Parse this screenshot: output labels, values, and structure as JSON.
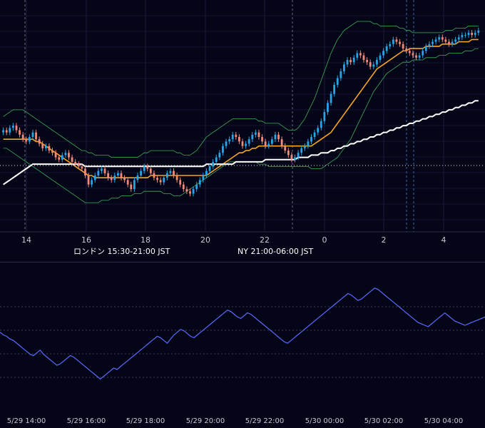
{
  "chart_data": [
    {
      "type": "candlestick",
      "colors": {
        "up": "#26a6e8",
        "down": "#f28a78",
        "ma_fast": "#f5a623",
        "ma_slow": "#ffffff",
        "bollinger": "#3fae5a",
        "background": "#050518",
        "grid": "#1a1a38"
      },
      "x_tick_labels": [
        "14",
        "16",
        "18",
        "20",
        "22",
        "0",
        "2",
        "4"
      ],
      "close": [
        62,
        61,
        63,
        64,
        62,
        60,
        58,
        57,
        59,
        61,
        58,
        56,
        54,
        55,
        53,
        52,
        50,
        49,
        51,
        52,
        50,
        48,
        47,
        46,
        45,
        42,
        38,
        40,
        42,
        44,
        45,
        43,
        41,
        40,
        42,
        43,
        41,
        40,
        38,
        36,
        40,
        42,
        44,
        46,
        45,
        43,
        41,
        40,
        39,
        41,
        43,
        44,
        42,
        40,
        38,
        36,
        35,
        34,
        36,
        38,
        40,
        42,
        44,
        46,
        48,
        50,
        52,
        55,
        57,
        58,
        60,
        59,
        57,
        55,
        56,
        58,
        60,
        61,
        59,
        57,
        55,
        56,
        58,
        60,
        58,
        55,
        53,
        51,
        49,
        50,
        52,
        54,
        55,
        57,
        59,
        61,
        63,
        66,
        70,
        74,
        78,
        82,
        85,
        88,
        91,
        93,
        92,
        94,
        96,
        95,
        93,
        92,
        90,
        91,
        93,
        95,
        97,
        99,
        100,
        102,
        101,
        100,
        98,
        97,
        96,
        95,
        94,
        95,
        97,
        99,
        100,
        101,
        102,
        103,
        102,
        101,
        100,
        101,
        102,
        103,
        104,
        104,
        105,
        104,
        105,
        106
      ],
      "moving_averages": [
        {
          "id": "fast",
          "color": "#f5a623",
          "values": [
            58,
            58,
            58,
            58,
            58,
            58,
            58,
            58,
            58,
            58,
            57,
            57,
            56,
            55,
            54,
            53,
            52,
            51,
            50,
            49,
            48,
            47,
            46,
            45,
            44,
            43,
            42,
            42,
            41,
            41,
            41,
            41,
            41,
            41,
            41,
            41,
            41,
            41,
            41,
            41,
            41,
            41,
            41,
            41,
            41,
            42,
            42,
            42,
            42,
            42,
            42,
            42,
            42,
            42,
            42,
            42,
            42,
            42,
            42,
            42,
            42,
            42,
            42,
            43,
            44,
            45,
            46,
            47,
            48,
            49,
            50,
            51,
            52,
            52,
            53,
            53,
            54,
            54,
            55,
            55,
            55,
            55,
            55,
            55,
            55,
            55,
            55,
            55,
            55,
            55,
            55,
            55,
            55,
            55,
            55,
            56,
            57,
            58,
            59,
            60,
            61,
            63,
            65,
            67,
            69,
            71,
            73,
            75,
            77,
            79,
            81,
            83,
            85,
            87,
            89,
            90,
            91,
            92,
            93,
            94,
            95,
            96,
            97,
            97,
            98,
            98,
            98,
            98,
            98,
            99,
            99,
            99,
            99,
            99,
            100,
            100,
            100,
            100,
            100,
            101,
            101,
            101,
            101,
            102,
            102,
            102
          ]
        },
        {
          "id": "slow",
          "color": "#ffffff",
          "values": [
            38,
            39,
            40,
            41,
            42,
            43,
            44,
            45,
            46,
            47,
            47,
            47,
            47,
            47,
            47,
            47,
            47,
            47,
            47,
            47,
            47,
            47,
            47,
            47,
            47,
            46,
            46,
            46,
            46,
            46,
            46,
            46,
            46,
            46,
            46,
            46,
            46,
            46,
            46,
            46,
            46,
            46,
            46,
            46,
            46,
            46,
            46,
            46,
            46,
            46,
            46,
            46,
            46,
            46,
            46,
            46,
            46,
            46,
            46,
            46,
            46,
            46,
            47,
            47,
            47,
            47,
            47,
            47,
            47,
            47,
            47,
            48,
            48,
            48,
            48,
            48,
            48,
            48,
            48,
            48,
            49,
            49,
            49,
            49,
            49,
            49,
            49,
            49,
            49,
            49,
            50,
            50,
            50,
            50,
            51,
            51,
            51,
            52,
            52,
            52,
            53,
            53,
            54,
            54,
            55,
            55,
            56,
            56,
            57,
            57,
            58,
            58,
            59,
            59,
            60,
            60,
            61,
            61,
            62,
            62,
            63,
            63,
            64,
            64,
            65,
            65,
            66,
            66,
            67,
            67,
            68,
            68,
            69,
            69,
            70,
            70,
            71,
            71,
            72,
            72,
            73,
            73,
            74,
            74,
            75,
            75
          ]
        }
      ],
      "bollinger_upper": [
        68,
        69,
        70,
        71,
        71,
        71,
        71,
        70,
        69,
        68,
        67,
        66,
        65,
        64,
        63,
        62,
        61,
        60,
        59,
        58,
        57,
        56,
        55,
        54,
        53,
        53,
        52,
        52,
        51,
        51,
        51,
        51,
        51,
        50,
        50,
        50,
        50,
        50,
        50,
        50,
        50,
        50,
        51,
        52,
        52,
        53,
        53,
        53,
        53,
        53,
        53,
        53,
        53,
        52,
        52,
        51,
        51,
        51,
        52,
        53,
        55,
        57,
        59,
        60,
        61,
        62,
        63,
        64,
        65,
        66,
        67,
        67,
        67,
        67,
        67,
        67,
        67,
        67,
        66,
        66,
        65,
        65,
        65,
        65,
        65,
        64,
        63,
        62,
        62,
        62,
        63,
        65,
        67,
        70,
        73,
        76,
        80,
        84,
        88,
        92,
        96,
        99,
        102,
        104,
        106,
        107,
        108,
        109,
        110,
        110,
        110,
        110,
        110,
        109,
        109,
        108,
        108,
        108,
        108,
        108,
        108,
        107,
        107,
        106,
        106,
        105,
        105,
        105,
        105,
        105,
        105,
        105,
        105,
        105,
        105,
        106,
        106,
        106,
        107,
        107,
        107,
        107,
        108,
        108,
        108,
        108
      ],
      "bollinger_lower": [
        54,
        54,
        53,
        52,
        51,
        50,
        49,
        48,
        47,
        46,
        45,
        44,
        43,
        42,
        41,
        40,
        39,
        38,
        37,
        36,
        35,
        34,
        33,
        32,
        31,
        30,
        30,
        30,
        30,
        30,
        31,
        31,
        31,
        32,
        32,
        32,
        33,
        33,
        33,
        33,
        34,
        34,
        34,
        35,
        35,
        35,
        35,
        35,
        35,
        34,
        34,
        34,
        33,
        33,
        33,
        34,
        35,
        36,
        37,
        38,
        39,
        40,
        41,
        42,
        43,
        44,
        45,
        46,
        47,
        48,
        48,
        48,
        48,
        48,
        48,
        48,
        48,
        48,
        47,
        47,
        47,
        46,
        46,
        46,
        46,
        46,
        46,
        46,
        46,
        46,
        46,
        46,
        46,
        46,
        45,
        45,
        45,
        45,
        46,
        47,
        48,
        49,
        50,
        52,
        54,
        56,
        58,
        61,
        64,
        67,
        70,
        73,
        76,
        79,
        81,
        83,
        85,
        87,
        88,
        89,
        90,
        91,
        92,
        92,
        92,
        93,
        93,
        93,
        93,
        94,
        94,
        94,
        94,
        95,
        95,
        95,
        96,
        96,
        96,
        96,
        96,
        97,
        97,
        97,
        98,
        98
      ],
      "session_labels": [
        {
          "label": "",
          "color": "#2f5a8c"
        },
        {
          "label": "ロンドン 15:30-21:00 JST",
          "color": "#8a5a1c"
        },
        {
          "label": "NY 21:00-06:00 JST",
          "color": "#1f5e3c"
        }
      ],
      "dotted_level": 50
    },
    {
      "type": "line",
      "color": "#5a6bff",
      "x_tick_labels": [
        "5/29 14:00",
        "5/29 16:00",
        "5/29 18:00",
        "5/29 20:00",
        "5/29 22:00",
        "5/30 00:00",
        "5/30 02:00",
        "5/30 04:00"
      ],
      "values": [
        60,
        58,
        57,
        55,
        54,
        52,
        50,
        48,
        46,
        44,
        43,
        45,
        47,
        44,
        42,
        40,
        38,
        36,
        37,
        39,
        41,
        43,
        42,
        40,
        38,
        36,
        34,
        32,
        30,
        28,
        26,
        28,
        30,
        32,
        34,
        33,
        35,
        37,
        39,
        41,
        43,
        45,
        47,
        49,
        51,
        53,
        55,
        57,
        56,
        54,
        52,
        55,
        58,
        60,
        62,
        61,
        59,
        57,
        56,
        58,
        60,
        62,
        64,
        66,
        68,
        70,
        72,
        74,
        76,
        75,
        73,
        71,
        70,
        72,
        74,
        73,
        71,
        69,
        67,
        65,
        63,
        61,
        59,
        57,
        55,
        53,
        52,
        54,
        56,
        58,
        60,
        62,
        64,
        66,
        68,
        70,
        72,
        74,
        76,
        78,
        80,
        82,
        84,
        86,
        88,
        87,
        85,
        83,
        84,
        86,
        88,
        90,
        92,
        91,
        89,
        87,
        85,
        83,
        81,
        79,
        77,
        75,
        73,
        71,
        69,
        67,
        66,
        65,
        64,
        66,
        68,
        70,
        72,
        74,
        72,
        70,
        68,
        67,
        66,
        65,
        66,
        67,
        68,
        69,
        70,
        71
      ]
    }
  ]
}
